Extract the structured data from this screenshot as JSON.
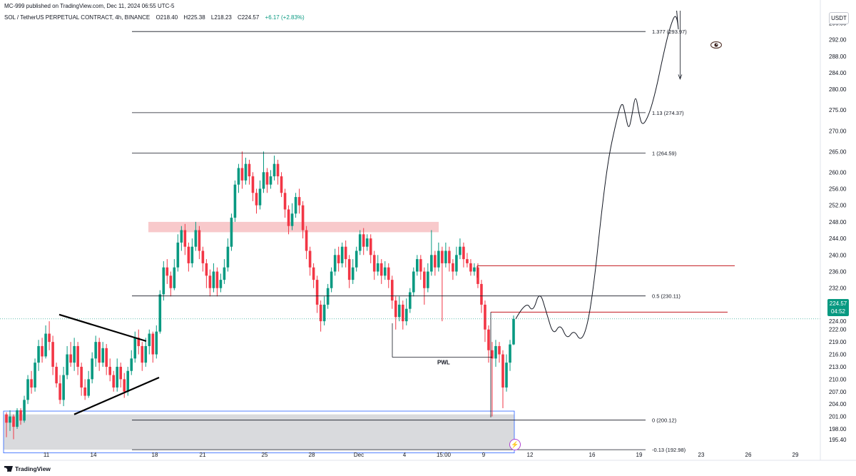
{
  "header": {
    "published": "MC-999 published on TradingView.com, Dec 11, 2024 06:55 UTC-5",
    "symbol": "SOL / TetherUS PERPETUAL CONTRACT, 4h, BINANCE",
    "open": "O218.40",
    "high": "H225.38",
    "low": "L218.23",
    "close": "C224.57",
    "change": "+6.17 (+2.83%)"
  },
  "currency_button": "USDT",
  "brand": "TradingView",
  "icons": {
    "eye": "eye-icon",
    "bolt": "lightning-icon",
    "logo": "tradingview-logo-icon"
  },
  "colors": {
    "up": "#089981",
    "down": "#f23645",
    "zone": "#f8c6c8",
    "demand": "#d9dadd",
    "level_red": "#c2181f"
  },
  "current_price": {
    "value": "224.57",
    "countdown": "04:52"
  },
  "chart_data": {
    "type": "candlestick",
    "ylim": [
      193.0,
      299.0
    ],
    "y_ticks": [
      "296.00",
      "292.00",
      "288.00",
      "284.00",
      "280.00",
      "275.00",
      "270.00",
      "265.00",
      "260.00",
      "256.00",
      "252.00",
      "248.00",
      "244.00",
      "240.00",
      "236.00",
      "232.00",
      "228.00",
      "224.00",
      "222.00",
      "219.00",
      "216.00",
      "213.00",
      "210.00",
      "207.00",
      "204.00",
      "201.00",
      "198.00",
      "195.40"
    ],
    "x_ticks": [
      "11",
      "14",
      "18",
      "21",
      "25",
      "28",
      "Dec",
      "4",
      "15:00",
      "9",
      "12",
      "16",
      "19",
      "23",
      "26",
      "29"
    ],
    "fib_levels": [
      {
        "label": "1.377 (293.97)",
        "value": 293.97
      },
      {
        "label": "1.13 (274.37)",
        "value": 274.37
      },
      {
        "label": "1 (264.59)",
        "value": 264.59
      },
      {
        "label": "0.5 (230.11)",
        "value": 230.11
      },
      {
        "label": "0 (200.12)",
        "value": 200.12
      },
      {
        "label": "-0.13 (192.98)",
        "value": 192.98
      }
    ],
    "annotations": [
      {
        "label": "PWL",
        "value": 215.3
      },
      {
        "label": "supply-zone",
        "low": 245.5,
        "high": 248.0
      },
      {
        "label": "resistance-line",
        "value": 237.4
      },
      {
        "label": "resistance-line",
        "value": 226.2
      },
      {
        "label": "demand-zone",
        "low": 193.0,
        "high": 201.5
      }
    ],
    "candles": [
      [
        201.5,
        199.5,
        202.0,
        196.0
      ],
      [
        199.5,
        201.0,
        202.5,
        197.5
      ],
      [
        201.0,
        198.5,
        201.5,
        195.5
      ],
      [
        198.5,
        202.5,
        203.0,
        198.0
      ],
      [
        202.5,
        200.0,
        203.0,
        199.0
      ],
      [
        200.0,
        205.0,
        206.0,
        199.5
      ],
      [
        205.0,
        210.0,
        211.0,
        204.0
      ],
      [
        210.0,
        208.0,
        212.0,
        206.5
      ],
      [
        208.0,
        214.0,
        215.0,
        207.0
      ],
      [
        214.0,
        218.0,
        219.5,
        212.0
      ],
      [
        218.0,
        215.5,
        220.0,
        214.0
      ],
      [
        215.5,
        221.0,
        223.0,
        215.0
      ],
      [
        221.0,
        219.0,
        224.0,
        217.0
      ],
      [
        219.0,
        213.0,
        220.5,
        211.0
      ],
      [
        213.0,
        209.0,
        214.0,
        208.0
      ],
      [
        209.0,
        205.0,
        211.0,
        204.0
      ],
      [
        205.0,
        211.0,
        213.0,
        203.5
      ],
      [
        211.0,
        216.0,
        218.0,
        210.0
      ],
      [
        216.0,
        214.0,
        219.0,
        213.0
      ],
      [
        214.0,
        218.0,
        220.0,
        212.0
      ],
      [
        218.0,
        213.0,
        219.0,
        211.0
      ],
      [
        213.0,
        208.0,
        214.0,
        206.0
      ],
      [
        208.0,
        206.0,
        210.0,
        205.0
      ],
      [
        206.0,
        210.0,
        212.0,
        205.5
      ],
      [
        210.0,
        215.0,
        216.5,
        209.0
      ],
      [
        215.0,
        219.0,
        220.5,
        213.0
      ],
      [
        219.0,
        214.0,
        220.0,
        212.0
      ],
      [
        214.0,
        217.5,
        219.0,
        213.0
      ],
      [
        217.5,
        213.0,
        218.5,
        211.0
      ],
      [
        213.0,
        211.0,
        215.0,
        209.5
      ],
      [
        211.0,
        208.0,
        212.0,
        207.0
      ],
      [
        208.0,
        213.0,
        215.0,
        207.0
      ],
      [
        213.0,
        210.0,
        214.0,
        208.0
      ],
      [
        210.0,
        207.0,
        211.5,
        205.5
      ],
      [
        207.0,
        212.0,
        213.0,
        206.0
      ],
      [
        212.0,
        215.0,
        217.0,
        211.0
      ],
      [
        215.0,
        220.0,
        221.5,
        214.0
      ],
      [
        220.0,
        218.0,
        222.0,
        216.0
      ],
      [
        218.0,
        214.0,
        219.0,
        212.0
      ],
      [
        214.0,
        218.0,
        220.0,
        213.0
      ],
      [
        218.0,
        221.0,
        222.0,
        216.0
      ],
      [
        221.0,
        216.0,
        221.5,
        214.0
      ],
      [
        216.0,
        221.5,
        223.0,
        215.0
      ],
      [
        221.5,
        230.5,
        231.5,
        221.0
      ],
      [
        230.5,
        237.0,
        238.5,
        229.0
      ],
      [
        237.0,
        235.0,
        239.0,
        233.0
      ],
      [
        235.0,
        232.0,
        236.0,
        230.0
      ],
      [
        232.0,
        237.0,
        239.0,
        231.5
      ],
      [
        237.0,
        243.0,
        245.0,
        236.0
      ],
      [
        243.0,
        246.0,
        247.0,
        241.0
      ],
      [
        246.0,
        242.0,
        247.5,
        240.0
      ],
      [
        242.0,
        238.0,
        243.0,
        236.0
      ],
      [
        238.0,
        242.0,
        244.0,
        237.0
      ],
      [
        242.0,
        246.0,
        248.0,
        241.0
      ],
      [
        246.0,
        241.0,
        247.0,
        239.0
      ],
      [
        241.0,
        238.0,
        242.0,
        236.0
      ],
      [
        238.0,
        235.0,
        239.0,
        232.0
      ],
      [
        235.0,
        232.0,
        236.5,
        230.0
      ],
      [
        232.0,
        236.0,
        238.0,
        231.0
      ],
      [
        236.0,
        232.0,
        237.0,
        230.0
      ],
      [
        232.0,
        234.0,
        235.5,
        231.0
      ],
      [
        234.0,
        237.0,
        239.0,
        233.0
      ],
      [
        237.0,
        242.0,
        244.0,
        236.0
      ],
      [
        242.0,
        249.0,
        250.0,
        241.0
      ],
      [
        249.0,
        257.0,
        258.0,
        248.0
      ],
      [
        257.0,
        261.0,
        262.0,
        255.0
      ],
      [
        261.0,
        258.0,
        265.0,
        256.0
      ],
      [
        258.0,
        262.0,
        263.5,
        257.0
      ],
      [
        262.0,
        259.0,
        263.0,
        257.0
      ],
      [
        259.0,
        255.0,
        260.0,
        253.0
      ],
      [
        255.0,
        252.0,
        256.0,
        250.0
      ],
      [
        252.0,
        256.0,
        258.0,
        251.0
      ],
      [
        256.0,
        260.0,
        265.0,
        255.0
      ],
      [
        260.0,
        257.0,
        261.0,
        255.0
      ],
      [
        257.0,
        259.0,
        260.5,
        256.0
      ],
      [
        259.0,
        262.0,
        264.0,
        258.0
      ],
      [
        262.0,
        259.0,
        263.0,
        257.0
      ],
      [
        259.0,
        255.0,
        260.0,
        254.0
      ],
      [
        255.0,
        251.0,
        256.0,
        249.0
      ],
      [
        251.0,
        247.0,
        252.0,
        245.0
      ],
      [
        247.0,
        250.0,
        252.5,
        246.0
      ],
      [
        250.0,
        254.0,
        255.0,
        249.0
      ],
      [
        254.0,
        252.0,
        256.0,
        250.0
      ],
      [
        252.0,
        246.0,
        253.0,
        244.0
      ],
      [
        246.0,
        241.0,
        247.0,
        239.0
      ],
      [
        241.0,
        237.0,
        242.0,
        235.0
      ],
      [
        237.0,
        234.0,
        238.0,
        232.0
      ],
      [
        234.0,
        228.0,
        235.0,
        226.0
      ],
      [
        228.0,
        224.0,
        229.0,
        221.5
      ],
      [
        224.0,
        228.0,
        230.0,
        223.0
      ],
      [
        228.0,
        232.0,
        233.0,
        227.0
      ],
      [
        232.0,
        236.0,
        237.0,
        231.0
      ],
      [
        236.0,
        240.0,
        241.5,
        235.0
      ],
      [
        240.0,
        238.0,
        242.0,
        236.0
      ],
      [
        238.0,
        242.0,
        243.0,
        237.0
      ],
      [
        242.0,
        239.0,
        243.5,
        237.0
      ],
      [
        239.0,
        234.0,
        240.0,
        232.0
      ],
      [
        234.0,
        237.0,
        239.0,
        233.0
      ],
      [
        237.0,
        241.0,
        242.0,
        236.0
      ],
      [
        241.0,
        245.0,
        246.0,
        240.0
      ],
      [
        245.0,
        242.0,
        246.5,
        240.0
      ],
      [
        242.0,
        244.0,
        245.0,
        241.0
      ],
      [
        244.0,
        240.0,
        245.0,
        238.0
      ],
      [
        240.0,
        236.0,
        241.0,
        234.0
      ],
      [
        236.0,
        238.0,
        240.0,
        235.0
      ],
      [
        238.0,
        235.0,
        239.0,
        233.0
      ],
      [
        235.0,
        237.0,
        238.5,
        234.0
      ],
      [
        237.0,
        234.0,
        238.0,
        232.0
      ],
      [
        234.0,
        229.0,
        235.0,
        227.0
      ],
      [
        229.0,
        225.0,
        230.0,
        222.0
      ],
      [
        225.0,
        228.0,
        230.0,
        224.0
      ],
      [
        228.0,
        224.0,
        229.0,
        222.0
      ],
      [
        224.0,
        227.0,
        229.5,
        223.0
      ],
      [
        227.0,
        231.0,
        232.0,
        226.0
      ],
      [
        231.0,
        236.0,
        237.0,
        230.0
      ],
      [
        236.0,
        239.0,
        240.0,
        235.0
      ],
      [
        239.0,
        236.0,
        240.0,
        234.0
      ],
      [
        236.0,
        232.0,
        237.0,
        228.0
      ],
      [
        232.0,
        236.0,
        238.0,
        231.0
      ],
      [
        236.0,
        240.0,
        246.0,
        235.0
      ],
      [
        240.0,
        237.0,
        241.0,
        235.0
      ],
      [
        237.0,
        241.0,
        243.0,
        236.0
      ],
      [
        241.0,
        238.0,
        242.0,
        224.0
      ],
      [
        238.0,
        241.0,
        243.0,
        237.0
      ],
      [
        241.0,
        238.0,
        242.0,
        236.0
      ],
      [
        238.0,
        236.0,
        239.0,
        234.0
      ],
      [
        236.0,
        240.0,
        242.0,
        235.0
      ],
      [
        240.0,
        242.0,
        244.0,
        239.0
      ],
      [
        242.0,
        239.0,
        243.0,
        237.0
      ],
      [
        239.0,
        238.0,
        240.5,
        237.0
      ],
      [
        238.0,
        236.0,
        239.0,
        235.0
      ],
      [
        236.0,
        237.0,
        238.0,
        235.0
      ],
      [
        237.0,
        233.0,
        238.0,
        232.0
      ],
      [
        233.0,
        228.0,
        234.0,
        226.0
      ],
      [
        228.0,
        222.0,
        229.0,
        219.0
      ],
      [
        222.0,
        217.0,
        223.0,
        214.0
      ],
      [
        217.0,
        215.0,
        219.0,
        201.0
      ],
      [
        215.0,
        218.0,
        219.5,
        213.0
      ],
      [
        218.0,
        216.0,
        219.0,
        214.0
      ],
      [
        216.0,
        208.0,
        217.0,
        203.0
      ],
      [
        208.0,
        214.0,
        216.0,
        207.0
      ],
      [
        214.0,
        218.4,
        219.5,
        212.0
      ],
      [
        218.4,
        224.57,
        225.38,
        218.23
      ]
    ],
    "projection": [
      [
        0,
        224.57
      ],
      [
        3,
        229.0
      ],
      [
        5,
        226.0
      ],
      [
        7,
        231.5
      ],
      [
        9,
        226.0
      ],
      [
        11,
        220.5
      ],
      [
        13,
        223.5
      ],
      [
        15,
        219.5
      ],
      [
        17,
        222.0
      ],
      [
        19,
        219.0
      ],
      [
        21,
        223.0
      ],
      [
        23,
        234.0
      ],
      [
        25,
        250.0
      ],
      [
        27,
        263.0
      ],
      [
        29,
        271.0
      ],
      [
        31,
        277.5
      ],
      [
        32,
        274.0
      ],
      [
        33,
        270.0
      ],
      [
        34,
        274.0
      ],
      [
        35,
        279.0
      ],
      [
        36,
        274.0
      ],
      [
        37,
        271.0
      ],
      [
        39,
        274.0
      ],
      [
        41,
        280.0
      ],
      [
        43,
        288.0
      ],
      [
        45,
        295.0
      ],
      [
        47,
        299.0
      ],
      [
        48,
        290.0
      ],
      [
        48,
        282.0
      ]
    ]
  }
}
